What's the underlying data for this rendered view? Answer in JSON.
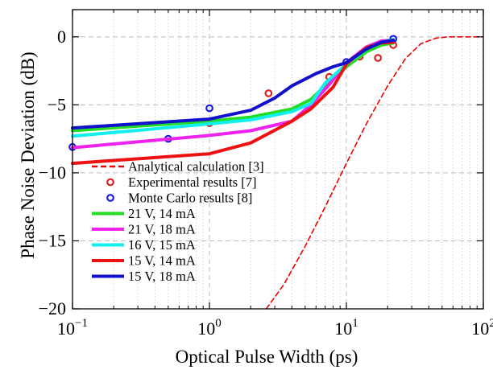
{
  "chart_data": {
    "type": "line",
    "xlabel": "Optical Pulse Width (ps)",
    "ylabel": "Phase Noise Deviation (dB)",
    "xscale": "log",
    "xlim": [
      0.1,
      100
    ],
    "ylim": [
      -20,
      2
    ],
    "x_ticks": [
      {
        "value": 0.1,
        "base": "10",
        "exp": "−1"
      },
      {
        "value": 1,
        "base": "10",
        "exp": "0"
      },
      {
        "value": 10,
        "base": "10",
        "exp": "1"
      },
      {
        "value": 100,
        "base": "10",
        "exp": "2"
      }
    ],
    "y_ticks": [
      {
        "value": 0,
        "label": "0"
      },
      {
        "value": -5,
        "label": "−5"
      },
      {
        "value": -10,
        "label": "−10"
      },
      {
        "value": -15,
        "label": "−15"
      },
      {
        "value": -20,
        "label": "−20"
      }
    ],
    "grid": true,
    "legend_position": "center-left",
    "series": [
      {
        "name": "Analytical calculation [3]",
        "style": "dashed",
        "color": "#ee0000",
        "x": [
          2.6,
          3.5,
          5,
          7,
          10,
          14,
          20,
          27,
          35,
          45,
          55,
          65,
          80,
          100
        ],
        "y": [
          -20,
          -18.2,
          -15.4,
          -12.5,
          -9.3,
          -6.4,
          -3.6,
          -1.6,
          -0.5,
          -0.1,
          0,
          0,
          0,
          0
        ]
      },
      {
        "name": "Experimental results [7]",
        "style": "markers",
        "color": "#dd2222",
        "x": [
          1,
          2.7,
          7.5,
          12.5,
          17,
          22
        ],
        "y": [
          -6.35,
          -4.15,
          -2.95,
          -1.45,
          -1.55,
          -0.6
        ]
      },
      {
        "name": "Monte Carlo results [8]",
        "style": "markers",
        "color": "#1a1ae6",
        "x": [
          0.1,
          0.5,
          1,
          10,
          22
        ],
        "y": [
          -8.1,
          -7.5,
          -5.25,
          -1.85,
          -0.15
        ]
      },
      {
        "name": "21 V, 14 mA",
        "style": "line",
        "color": "#22dd22",
        "x": [
          0.1,
          1,
          2,
          4,
          5.5,
          7,
          10,
          14,
          18,
          22
        ],
        "y": [
          -6.9,
          -6.2,
          -5.9,
          -5.3,
          -4.6,
          -3.6,
          -2.2,
          -1.1,
          -0.6,
          -0.45
        ]
      },
      {
        "name": "21 V, 18 mA",
        "style": "line",
        "color": "#ee22ee",
        "x": [
          0.1,
          1,
          2,
          4,
          5.5,
          7.5,
          10,
          14,
          18,
          22
        ],
        "y": [
          -8.15,
          -7.25,
          -6.9,
          -6.2,
          -5.0,
          -3.5,
          -1.9,
          -0.75,
          -0.3,
          -0.25
        ]
      },
      {
        "name": "16 V, 15 mA",
        "style": "line",
        "color": "#11eeee",
        "x": [
          0.1,
          1,
          2,
          4,
          5.5,
          7,
          10,
          14,
          18,
          22
        ],
        "y": [
          -7.3,
          -6.4,
          -6.1,
          -5.5,
          -4.9,
          -3.4,
          -2.0,
          -0.9,
          -0.4,
          -0.2
        ]
      },
      {
        "name": "15 V, 14 mA",
        "style": "line",
        "color": "#ee1111",
        "x": [
          0.1,
          1,
          2,
          4,
          5.5,
          8,
          10,
          14,
          18,
          22
        ],
        "y": [
          -9.3,
          -8.6,
          -7.8,
          -6.2,
          -5.3,
          -3.7,
          -2.0,
          -0.8,
          -0.45,
          -0.4
        ]
      },
      {
        "name": "15 V, 18 mA",
        "style": "line",
        "color": "#1111cc",
        "x": [
          0.1,
          1,
          2,
          3,
          4,
          6,
          8,
          10,
          14,
          18,
          22
        ],
        "y": [
          -6.7,
          -6.05,
          -5.4,
          -4.5,
          -3.6,
          -2.7,
          -2.2,
          -1.9,
          -0.9,
          -0.4,
          -0.25
        ]
      }
    ]
  }
}
